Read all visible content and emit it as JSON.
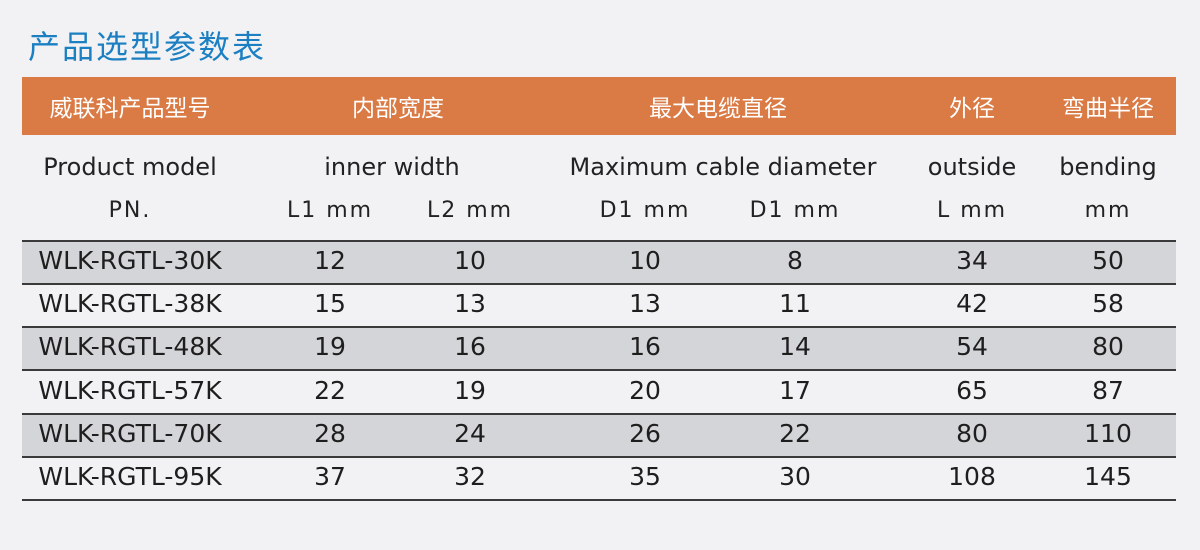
{
  "title": "产品选型参数表",
  "header_cn": [
    "威联科产品型号",
    "内部宽度",
    "最大电缆直径",
    "外径",
    "弯曲半径"
  ],
  "header_en": [
    "Product model",
    "inner width",
    "Maximum cable diameter",
    "outside",
    "bending"
  ],
  "units": [
    "PN.",
    "L1  mm",
    "L2  mm",
    "D1  mm",
    "D1  mm",
    "L  mm",
    "mm"
  ],
  "colors": {
    "header_band": "#da7a45",
    "title": "#1b7fc2",
    "shaded_row": "#d4d5d8"
  },
  "rows": [
    [
      "WLK-RGTL-30K",
      "12",
      "10",
      "10",
      "8",
      "34",
      "50"
    ],
    [
      "WLK-RGTL-38K",
      "15",
      "13",
      "13",
      "11",
      "42",
      "58"
    ],
    [
      "WLK-RGTL-48K",
      "19",
      "16",
      "16",
      "14",
      "54",
      "80"
    ],
    [
      "WLK-RGTL-57K",
      "22",
      "19",
      "20",
      "17",
      "65",
      "87"
    ],
    [
      "WLK-RGTL-70K",
      "28",
      "24",
      "26",
      "22",
      "80",
      "110"
    ],
    [
      "WLK-RGTL-95K",
      "37",
      "32",
      "35",
      "30",
      "108",
      "145"
    ]
  ]
}
